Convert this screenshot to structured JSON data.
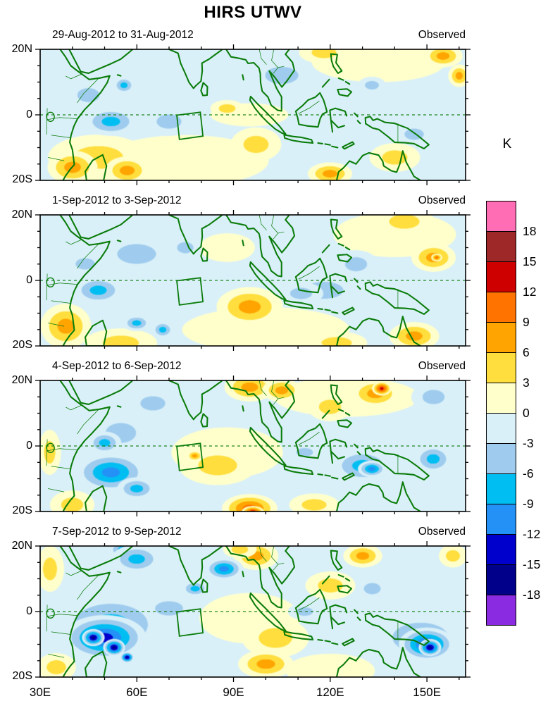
{
  "figure": {
    "title": "HIRS UTWV",
    "units_label": "K",
    "source_label": "Observed"
  },
  "chart_data": {
    "type": "heatmap",
    "title": "HIRS UTWV",
    "variable": "HIRS upper-tropospheric water vapor brightness temperature anomaly, 3-day means",
    "units": "K",
    "x_axis": {
      "label_ticks": [
        "30E",
        "60E",
        "90E",
        "120E",
        "150E"
      ],
      "tick_lons": [
        30,
        60,
        90,
        120,
        150
      ],
      "range": [
        30,
        162
      ],
      "minor_step_deg": 10
    },
    "y_axis": {
      "label_ticks": [
        "20N",
        "0",
        "20S"
      ],
      "tick_lats": [
        20,
        0,
        -20
      ],
      "range": [
        -20,
        20
      ],
      "minor_step_deg": 5
    },
    "colorbar": {
      "boundaries": [
        -18,
        -15,
        -12,
        -9,
        -6,
        -3,
        0,
        3,
        6,
        9,
        12,
        15,
        18
      ],
      "colors_bottom_to_top": [
        "#8A2BE2",
        "#00008B",
        "#0000CD",
        "#2391F5",
        "#00BEF2",
        "#9FCCEE",
        "#D9F0F8",
        "#FFFFCC",
        "#FFDE3D",
        "#FFA400",
        "#FF7300",
        "#CF0000",
        "#9E2828",
        "#FF6EB4"
      ],
      "label_values": [
        18,
        15,
        12,
        9,
        6,
        3,
        0,
        -3,
        -6,
        -9,
        -12,
        -15,
        -18
      ],
      "units": "K"
    },
    "overlays": {
      "equator_dashed": true,
      "coastline_color": "#0B7C0B",
      "region_box_quad_lonlat": [
        [
          72.4,
          -0.1
        ],
        [
          79.7,
          0.8
        ],
        [
          80.5,
          -6.5
        ],
        [
          73.2,
          -7.5
        ]
      ]
    },
    "panels": [
      {
        "date_range": "29-Aug-2012 to 31-Aug-2012",
        "source_label": "Observed",
        "anomaly_blobs": [
          [
            75,
            -14,
            30,
            9,
            2
          ],
          [
            135,
            16,
            24,
            7,
            2
          ],
          [
            95,
            0,
            14,
            4,
            2
          ],
          [
            48,
            -13,
            18,
            8,
            5
          ],
          [
            40,
            -16,
            9,
            6,
            8
          ],
          [
            57,
            -17,
            8,
            5,
            8
          ],
          [
            97,
            -9,
            9,
            6,
            5
          ],
          [
            88,
            2,
            6,
            3,
            6
          ],
          [
            120,
            -18,
            8,
            4,
            7
          ],
          [
            140,
            -13,
            9,
            5,
            5
          ],
          [
            118,
            19,
            9,
            4,
            5
          ],
          [
            155,
            18,
            7,
            4,
            7
          ],
          [
            160,
            12,
            4,
            4,
            8
          ],
          [
            105,
            12,
            12,
            6,
            -4
          ],
          [
            52,
            -2,
            10,
            5,
            -8
          ],
          [
            56,
            9,
            4,
            3,
            -7
          ],
          [
            45,
            6,
            8,
            5,
            -5
          ],
          [
            70,
            -2,
            9,
            5,
            -4
          ],
          [
            133,
            9,
            5,
            3,
            -6
          ],
          [
            146,
            -6,
            7,
            4,
            -5
          ]
        ]
      },
      {
        "date_range": "1-Sep-2012 to 3-Sep-2012",
        "source_label": "Observed",
        "anomaly_blobs": [
          [
            100,
            -15,
            30,
            8,
            2
          ],
          [
            140,
            14,
            22,
            8,
            2
          ],
          [
            88,
            10,
            10,
            5,
            3
          ],
          [
            55,
            -19,
            13,
            5,
            6
          ],
          [
            38,
            -14,
            9,
            8,
            8
          ],
          [
            95,
            -8,
            12,
            7,
            9
          ],
          [
            152,
            7,
            8,
            5,
            9
          ],
          [
            153,
            7,
            2,
            1.5,
            12
          ],
          [
            143,
            18,
            11,
            5,
            6
          ],
          [
            146,
            -17,
            9,
            5,
            7
          ],
          [
            122,
            -19,
            11,
            4,
            4
          ],
          [
            60,
            8,
            14,
            7,
            -4
          ],
          [
            48,
            -3,
            9,
            5,
            -8
          ],
          [
            44,
            5,
            7,
            4,
            -5
          ],
          [
            60,
            -13,
            5,
            3,
            -7
          ],
          [
            68,
            -15,
            4,
            3,
            -7
          ],
          [
            118,
            -3,
            14,
            6,
            -4
          ],
          [
            111,
            -4,
            8,
            4,
            -5
          ],
          [
            75,
            10,
            6,
            4,
            -4
          ],
          [
            128,
            5,
            8,
            5,
            -4
          ]
        ]
      },
      {
        "date_range": "4-Sep-2012 to 6-Sep-2012",
        "source_label": "Observed",
        "anomaly_blobs": [
          [
            88,
            -2,
            20,
            9,
            2
          ],
          [
            125,
            15,
            26,
            7,
            2
          ],
          [
            85,
            -6,
            14,
            7,
            6
          ],
          [
            95,
            -19,
            10,
            5,
            10
          ],
          [
            96,
            -20,
            4,
            2,
            13
          ],
          [
            95,
            18,
            9,
            5,
            8
          ],
          [
            105,
            17,
            7,
            4,
            7
          ],
          [
            134,
            16,
            9,
            5,
            9
          ],
          [
            136,
            17.5,
            3.5,
            2.5,
            13
          ],
          [
            120,
            12,
            8,
            5,
            5
          ],
          [
            115,
            -18,
            9,
            4,
            5
          ],
          [
            78,
            -3,
            3,
            2,
            7
          ],
          [
            33,
            -2,
            4,
            8,
            4
          ],
          [
            40,
            -18,
            8,
            5,
            4
          ],
          [
            52,
            -8,
            13,
            7,
            -11
          ],
          [
            60,
            -13,
            7,
            4,
            -9
          ],
          [
            55,
            4,
            11,
            7,
            -6
          ],
          [
            50,
            1,
            6,
            4,
            -7
          ],
          [
            65,
            13,
            9,
            5,
            -5
          ],
          [
            130,
            -6,
            11,
            6,
            -9
          ],
          [
            133,
            -7,
            5,
            3,
            -11
          ],
          [
            152,
            -4,
            7,
            5,
            -7
          ],
          [
            152,
            15,
            8,
            5,
            -4
          ],
          [
            112,
            -2,
            6,
            3,
            -4
          ]
        ]
      },
      {
        "date_range": "7-Sep-2012 to 9-Sep-2012",
        "source_label": "Observed",
        "anomaly_blobs": [
          [
            95,
            -2,
            18,
            9,
            2
          ],
          [
            120,
            -18,
            16,
            6,
            2
          ],
          [
            103,
            -8,
            12,
            7,
            6
          ],
          [
            100,
            -16,
            10,
            5,
            9
          ],
          [
            97,
            17,
            8,
            5,
            7
          ],
          [
            92,
            19,
            6,
            3,
            6
          ],
          [
            130,
            17,
            7,
            4,
            8
          ],
          [
            158,
            17,
            5,
            4,
            6
          ],
          [
            120,
            8,
            9,
            5,
            4
          ],
          [
            35,
            -17,
            7,
            5,
            4
          ],
          [
            33,
            13,
            5,
            8,
            4
          ],
          [
            52,
            -4,
            20,
            11,
            -9
          ],
          [
            50,
            -8,
            15,
            8,
            -13
          ],
          [
            46.5,
            -8,
            4,
            3,
            -16
          ],
          [
            53,
            -11,
            4,
            3,
            -16
          ],
          [
            57,
            -14,
            2.5,
            2,
            -16
          ],
          [
            57,
            19,
            7,
            3,
            -12
          ],
          [
            60,
            16,
            9,
            5,
            -9
          ],
          [
            78,
            7,
            5,
            3,
            -7
          ],
          [
            87,
            13,
            7,
            4,
            -10
          ],
          [
            70,
            1,
            10,
            5,
            -5
          ],
          [
            148,
            -8,
            15,
            8,
            -9
          ],
          [
            150,
            -10,
            10,
            6,
            -13
          ],
          [
            151,
            -11,
            4,
            3,
            -16
          ],
          [
            133,
            7,
            6,
            4,
            -5
          ],
          [
            112,
            0,
            6,
            3,
            -4
          ]
        ]
      }
    ]
  }
}
